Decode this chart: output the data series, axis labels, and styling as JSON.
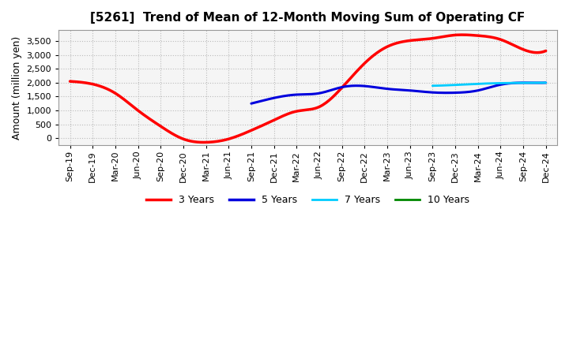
{
  "title": "[5261]  Trend of Mean of 12-Month Moving Sum of Operating CF",
  "ylabel": "Amount (million yen)",
  "plot_bg_color": "#f5f5f5",
  "fig_bg_color": "#ffffff",
  "grid_color": "#bbbbbb",
  "x_labels": [
    "Sep-19",
    "Dec-19",
    "Mar-20",
    "Jun-20",
    "Sep-20",
    "Dec-20",
    "Mar-21",
    "Jun-21",
    "Sep-21",
    "Dec-21",
    "Mar-22",
    "Jun-22",
    "Sep-22",
    "Dec-22",
    "Mar-23",
    "Jun-23",
    "Sep-23",
    "Dec-23",
    "Mar-24",
    "Jun-24",
    "Sep-24",
    "Dec-24"
  ],
  "series": {
    "3 Years": {
      "color": "#ff0000",
      "linewidth": 2.5,
      "data_x": [
        0,
        1,
        2,
        3,
        4,
        5,
        6,
        7,
        8,
        9,
        10,
        11,
        12,
        13,
        14,
        15,
        16,
        17,
        18,
        19,
        20,
        21
      ],
      "data_y": [
        2050,
        1950,
        1620,
        1000,
        430,
        -30,
        -150,
        -30,
        280,
        650,
        970,
        1130,
        1820,
        2700,
        3300,
        3520,
        3600,
        3720,
        3700,
        3560,
        3200,
        3150
      ]
    },
    "5 Years": {
      "color": "#0000dd",
      "linewidth": 2.2,
      "data_x": [
        8,
        9,
        10,
        11,
        12,
        13,
        14,
        15,
        16,
        17,
        18,
        19,
        20,
        21
      ],
      "data_y": [
        1250,
        1450,
        1570,
        1620,
        1840,
        1880,
        1780,
        1720,
        1650,
        1640,
        1720,
        1930,
        2000,
        2000
      ]
    },
    "7 Years": {
      "color": "#00ccff",
      "linewidth": 2.0,
      "data_x": [
        16,
        17,
        18,
        19,
        20,
        21
      ],
      "data_y": [
        1890,
        1920,
        1960,
        1985,
        1995,
        2000
      ]
    },
    "10 Years": {
      "color": "#008800",
      "linewidth": 2.0,
      "data_x": [],
      "data_y": []
    }
  },
  "ylim": [
    -250,
    3900
  ],
  "yticks": [
    0,
    500,
    1000,
    1500,
    2000,
    2500,
    3000,
    3500
  ],
  "title_fontsize": 11,
  "tick_fontsize": 8,
  "ylabel_fontsize": 9,
  "legend_fontsize": 9
}
